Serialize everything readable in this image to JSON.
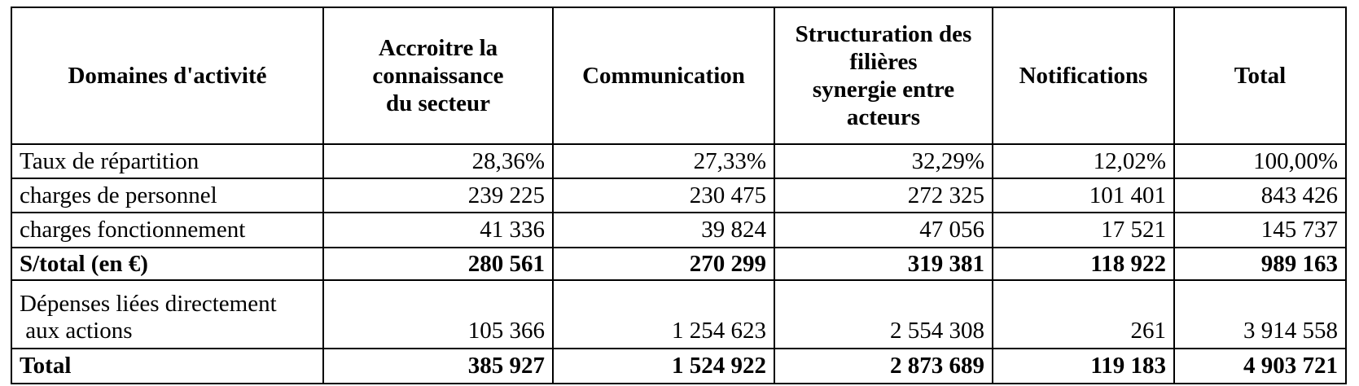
{
  "table": {
    "columns": [
      "Domaines d'activité",
      "Accroitre la\nconnaissance\ndu secteur",
      "Communication",
      "Structuration des\nfilières\nsynergie entre\nacteurs",
      "Notifications",
      "Total"
    ],
    "rows": [
      {
        "label": "Taux de répartition",
        "values": [
          "28,36%",
          "27,33%",
          "32,29%",
          "12,02%",
          "100,00%"
        ],
        "bold": false,
        "tall": false
      },
      {
        "label": "charges de personnel",
        "values": [
          "239 225",
          "230 475",
          "272 325",
          "101 401",
          "843 426"
        ],
        "bold": false,
        "tall": false
      },
      {
        "label": "charges fonctionnement",
        "values": [
          "41 336",
          "39 824",
          "47 056",
          "17 521",
          "145 737"
        ],
        "bold": false,
        "tall": false
      },
      {
        "label": "S/total (en €)",
        "values": [
          "280 561",
          "270 299",
          "319 381",
          "118 922",
          "989 163"
        ],
        "bold": true,
        "tall": false
      },
      {
        "label": "Dépenses liées directement\n aux actions",
        "values": [
          "105 366",
          "1 254 623",
          "2 554 308",
          "261",
          "3 914 558"
        ],
        "bold": false,
        "tall": true
      },
      {
        "label": "Total",
        "values": [
          "385 927",
          "1 524 922",
          "2 873 689",
          "119 183",
          "4 903 721"
        ],
        "bold": true,
        "tall": false
      }
    ]
  },
  "colors": {
    "border": "#000000",
    "text": "#000000",
    "background": "#ffffff"
  }
}
